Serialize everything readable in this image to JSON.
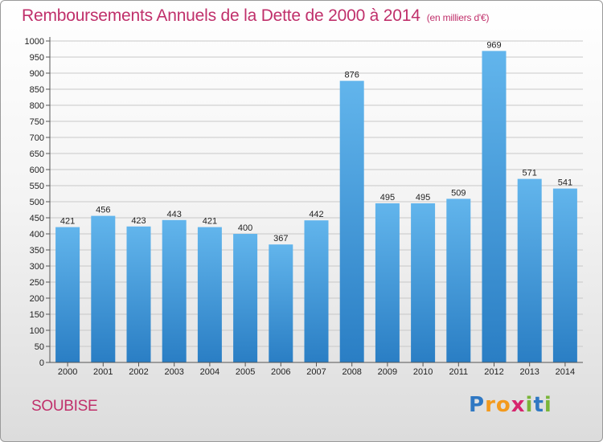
{
  "chart_data": {
    "type": "bar",
    "title": "Remboursements Annuels de la Dette de 2000 à 2014",
    "subtitle": "(en milliers d'€)",
    "categories": [
      "2000",
      "2001",
      "2002",
      "2003",
      "2004",
      "2005",
      "2006",
      "2007",
      "2008",
      "2009",
      "2010",
      "2011",
      "2012",
      "2013",
      "2014"
    ],
    "values": [
      421,
      456,
      423,
      443,
      421,
      400,
      367,
      442,
      876,
      495,
      495,
      509,
      969,
      571,
      541
    ],
    "ylim": [
      0,
      1000
    ],
    "ytick_step": 50,
    "xlabel": "",
    "ylabel": "",
    "grid": true
  },
  "footer": {
    "city": "SOUBISE",
    "brand_letters": [
      "P",
      "r",
      "o",
      "x",
      "i",
      "t",
      "i"
    ]
  },
  "colors": {
    "title": "#c0306b",
    "bar_top": "#62b5ec",
    "bar_bottom": "#2a7ec4",
    "grid": "#c8c8c8"
  }
}
